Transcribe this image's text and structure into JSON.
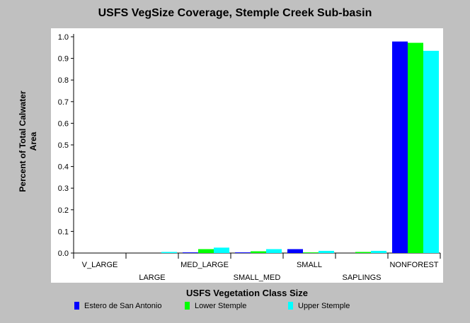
{
  "chart_data": {
    "type": "bar",
    "title": "USFS VegSize Coverage, Stemple Creek Sub-basin",
    "xlabel": "USFS Vegetation Class Size",
    "ylabel_lines": [
      "Percent of Total Calwater",
      "Area"
    ],
    "categories": [
      "V_LARGE",
      "LARGE",
      "MED_LARGE",
      "SMALL_MED",
      "SMALL",
      "SAPLINGS",
      "NONFOREST"
    ],
    "series": [
      {
        "name": "Estero de San Antonio",
        "color": "#0000ff",
        "values": [
          0.0,
          0.0,
          0.003,
          0.003,
          0.018,
          0.0,
          0.978
        ]
      },
      {
        "name": "Lower Stemple",
        "color": "#00ff00",
        "values": [
          0.0,
          0.0,
          0.018,
          0.008,
          0.003,
          0.005,
          0.972
        ]
      },
      {
        "name": "Upper Stemple",
        "color": "#00ffff",
        "values": [
          0.0,
          0.005,
          0.025,
          0.018,
          0.01,
          0.01,
          0.935
        ]
      }
    ],
    "yticks": [
      "0.0",
      "0.1",
      "0.2",
      "0.3",
      "0.4",
      "0.5",
      "0.6",
      "0.7",
      "0.8",
      "0.9",
      "1.0"
    ],
    "ylim": [
      0,
      1.0
    ],
    "grid": false,
    "legend_position": "bottom"
  }
}
